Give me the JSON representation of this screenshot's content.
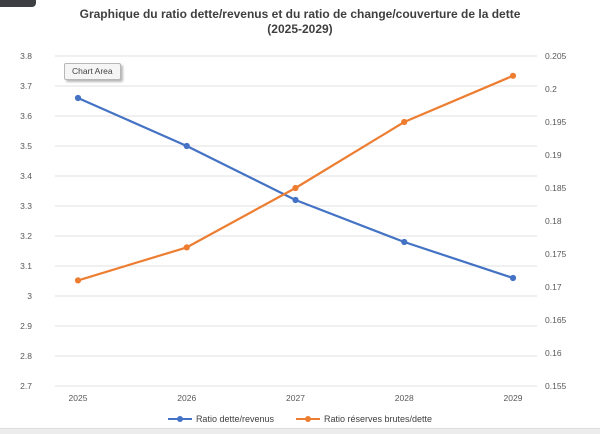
{
  "tooltip": {
    "label": "Chart Area"
  },
  "chart_data": {
    "type": "line",
    "title": "Graphique du ratio dette/revenus et du ratio de change/couverture de la dette",
    "subtitle": "(2025-2029)",
    "categories": [
      "2025",
      "2026",
      "2027",
      "2028",
      "2029"
    ],
    "series": [
      {
        "name": "Ratio dette/revenus",
        "axis": "left",
        "color": "#4472C4",
        "values": [
          3.66,
          3.5,
          3.32,
          3.18,
          3.06
        ]
      },
      {
        "name": "Ratio réserves brutes/dette",
        "axis": "right",
        "color": "#ED7D31",
        "values": [
          0.171,
          0.176,
          0.185,
          0.195,
          0.202
        ]
      }
    ],
    "left_axis": {
      "min": 2.7,
      "max": 3.8,
      "step": 0.1,
      "ticks": [
        "3.8",
        "3.7",
        "3.6",
        "3.5",
        "3.4",
        "3.3",
        "3.2",
        "3.1",
        "3",
        "2.9",
        "2.8",
        "2.7"
      ]
    },
    "right_axis": {
      "min": 0.155,
      "max": 0.205,
      "step": 0.005,
      "ticks": [
        "0.205",
        "0.2",
        "0.195",
        "0.19",
        "0.185",
        "0.18",
        "0.175",
        "0.17",
        "0.165",
        "0.16",
        "0.155"
      ]
    },
    "grid": true,
    "legend_position": "bottom",
    "colors": {
      "gridline": "#e2e2e2",
      "axis_text": "#595959",
      "title_text": "#3f3f3f"
    }
  }
}
